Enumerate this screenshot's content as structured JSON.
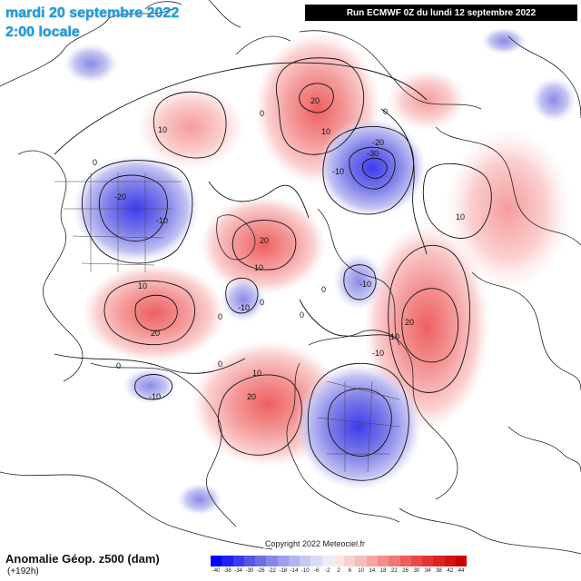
{
  "header": {
    "date": "mardi 20 septembre 2022",
    "time": "2:00 locale",
    "run": "Run ECMWF 0Z du lundi 12 septembre 2022"
  },
  "footer": {
    "title": "Anomalie Géop. z500 (dam)",
    "subtitle": "(+192h)",
    "copyright": "Copyright 2022 Meteociel.fr"
  },
  "legend": {
    "values": [
      "-40",
      "-38",
      "-34",
      "-30",
      "-26",
      "-22",
      "-18",
      "-14",
      "-10",
      "-6",
      "-2",
      "2",
      "6",
      "10",
      "14",
      "18",
      "22",
      "26",
      "30",
      "34",
      "38",
      "42",
      "44"
    ],
    "colors": [
      "#0000ff",
      "#1f1ff6",
      "#3a3aee",
      "#5555e6",
      "#6e6ee0",
      "#8686e6",
      "#9e9eec",
      "#b4b4f0",
      "#c8c8f4",
      "#dadaf8",
      "#ececfb",
      "#fbe6e6",
      "#f8d2d2",
      "#f6bcbc",
      "#f4a6a6",
      "#f28e8e",
      "#f07676",
      "#ee5e5e",
      "#ea4848",
      "#e43434",
      "#de2222",
      "#d61212",
      "#cc0000"
    ]
  },
  "anomalies": [
    {
      "label": "20",
      "sign": "positive"
    },
    {
      "label": "-30",
      "sign": "negative"
    },
    {
      "label": "-20",
      "sign": "negative"
    },
    {
      "label": "20",
      "sign": "positive"
    },
    {
      "label": "20",
      "sign": "positive"
    },
    {
      "label": "20",
      "sign": "positive"
    },
    {
      "label": "20",
      "sign": "positive"
    },
    {
      "label": "-20",
      "sign": "negative"
    },
    {
      "label": "-10",
      "sign": "negative"
    },
    {
      "label": "-10",
      "sign": "negative"
    },
    {
      "label": "-10",
      "sign": "negative"
    },
    {
      "label": "-10",
      "sign": "negative"
    }
  ],
  "contour_labels": [
    "10",
    "10",
    "0",
    "0",
    "0",
    "0",
    "0",
    "10",
    "10",
    "-10",
    "-10",
    "10",
    "0",
    "0",
    "0",
    "10",
    "10",
    "0"
  ]
}
